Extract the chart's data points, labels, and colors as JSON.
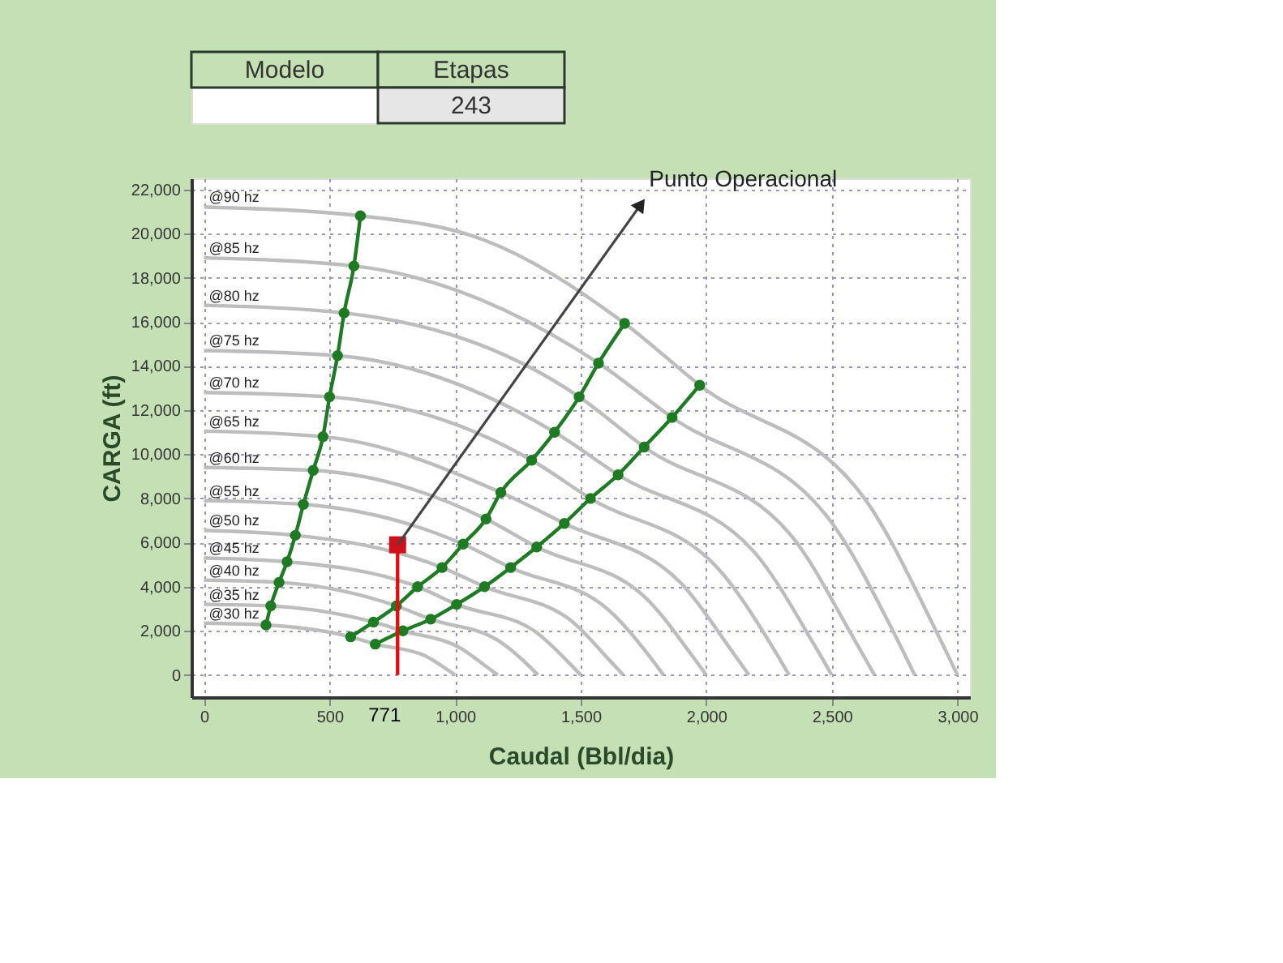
{
  "chart_data": {
    "type": "line",
    "xlabel": "Caudal (Bbl/dia)",
    "ylabel": "CARGA (ft)",
    "xlim": [
      -50,
      3050
    ],
    "ylim": [
      -1000,
      22500
    ],
    "xticks": [
      0,
      500,
      {
        "value": 1000,
        "label": "1,000"
      },
      {
        "value": 1500,
        "label": "1,500"
      },
      {
        "value": 2000,
        "label": "2,000"
      },
      {
        "value": 2500,
        "label": "2,500"
      },
      {
        "value": 3000,
        "label": "3,000"
      }
    ],
    "yticks": [
      0,
      {
        "value": 2000,
        "label": "2,000"
      },
      {
        "value": 4000,
        "label": "4,000"
      },
      {
        "value": 6000,
        "label": "6,000"
      },
      {
        "value": 8000,
        "label": "8,000"
      },
      {
        "value": 10000,
        "label": "10,000"
      },
      {
        "value": 12000,
        "label": "12,000"
      },
      {
        "value": 14000,
        "label": "14,000"
      },
      {
        "value": 16000,
        "label": "16,000"
      },
      {
        "value": 18000,
        "label": "18,000"
      },
      {
        "value": 20000,
        "label": "20,000"
      },
      {
        "value": 22000,
        "label": "22,000"
      }
    ],
    "grid": true,
    "line_style": "solid",
    "marker": "none",
    "annotations": [
      "Modelo",
      "Etapas",
      "243",
      {
        "text": "Punto Operacional",
        "x": 771,
        "y": 5900
      },
      {
        "text": "771",
        "x": 771,
        "y": 0
      }
    ],
    "series": [
      {
        "name": "@90 hz",
        "color": "#bdbdbd",
        "x": [
          0,
          623,
          1117,
          1675,
          1974,
          2630,
          2915,
          3000
        ],
        "values": [
          21200,
          20800,
          19700,
          15930,
          13130,
          8000,
          2000,
          0
        ]
      },
      {
        "name": "@85 hz",
        "color": "#bdbdbd",
        "x": [
          0,
          597,
          1571,
          1864,
          2484,
          2753,
          2830
        ],
        "values": [
          18900,
          18530,
          14130,
          11670,
          7140,
          1780,
          0
        ]
      },
      {
        "name": "@80 hz",
        "color": "#bdbdbd",
        "x": [
          0,
          558,
          1494,
          1753,
          2338,
          2591,
          2670
        ],
        "values": [
          16750,
          16400,
          12600,
          10330,
          6320,
          1580,
          0
        ]
      },
      {
        "name": "@75 hz",
        "color": "#bdbdbd",
        "x": [
          0,
          532,
          1396,
          1649,
          2192,
          2429,
          2500
        ],
        "values": [
          14700,
          14470,
          11000,
          9070,
          5560,
          1390,
          0
        ]
      },
      {
        "name": "@70 hz",
        "color": "#bdbdbd",
        "x": [
          0,
          500,
          1305,
          1539,
          2046,
          2267,
          2330
        ],
        "values": [
          12800,
          12600,
          9730,
          8000,
          4840,
          1210,
          0
        ]
      },
      {
        "name": "@65 hz",
        "color": "#bdbdbd",
        "x": [
          0,
          474,
          1182,
          1435,
          1899,
          2105,
          2170
        ],
        "values": [
          11050,
          10800,
          8270,
          6870,
          4170,
          1040,
          0
        ]
      },
      {
        "name": "@60 hz",
        "color": "#bdbdbd",
        "x": [
          0,
          435,
          1123,
          1325,
          1753,
          1943,
          2000
        ],
        "values": [
          9400,
          9270,
          7070,
          5800,
          3560,
          890,
          0
        ]
      },
      {
        "name": "@55 hz",
        "color": "#bdbdbd",
        "x": [
          0,
          396,
          1032,
          1221,
          1607,
          1781,
          1830
        ],
        "values": [
          7900,
          7730,
          5930,
          4870,
          2990,
          750,
          0
        ]
      },
      {
        "name": "@50 hz",
        "color": "#bdbdbd",
        "x": [
          0,
          364,
          948,
          1117,
          1461,
          1619,
          1670
        ],
        "values": [
          6550,
          6330,
          4870,
          4000,
          2470,
          620,
          0
        ]
      },
      {
        "name": "@45 hz",
        "color": "#bdbdbd",
        "x": [
          0,
          331,
          851,
          1006,
          1315,
          1458,
          1500
        ],
        "values": [
          5300,
          5130,
          4000,
          3200,
          2000,
          500,
          0
        ]
      },
      {
        "name": "@40 hz",
        "color": "#bdbdbd",
        "x": [
          0,
          299,
          766,
          903,
          1169,
          1295,
          1330
        ],
        "values": [
          4300,
          4200,
          3130,
          2530,
          1580,
          400,
          0
        ]
      },
      {
        "name": "@35 hz",
        "color": "#bdbdbd",
        "x": [
          0,
          266,
          675,
          792,
          1023,
          1134,
          1170
        ],
        "values": [
          3200,
          3130,
          2400,
          2000,
          1210,
          300,
          0
        ]
      },
      {
        "name": "@30 hz",
        "color": "#bdbdbd",
        "x": [
          0,
          247,
          584,
          682,
          877,
          972,
          1000
        ],
        "values": [
          2350,
          2270,
          1730,
          1400,
          890,
          220,
          0
        ]
      },
      {
        "color": "#1f7a24",
        "marker": "circle",
        "x": [
          623,
          597,
          558,
          532,
          500,
          474,
          435,
          396,
          364,
          331,
          299,
          266,
          247
        ],
        "values": [
          20800,
          18530,
          16400,
          14470,
          12600,
          10800,
          9270,
          7730,
          6330,
          5130,
          4200,
          3130,
          2270
        ]
      },
      {
        "color": "#1f7a24",
        "marker": "circle",
        "x": [
          1675,
          1571,
          1494,
          1396,
          1305,
          1182,
          1123,
          1032,
          948,
          851,
          766,
          675,
          584
        ],
        "values": [
          15930,
          14130,
          12600,
          11000,
          9730,
          8270,
          7070,
          5930,
          4870,
          4000,
          3130,
          2400,
          1730
        ]
      },
      {
        "color": "#1f7a24",
        "marker": "circle",
        "x": [
          1974,
          1864,
          1753,
          1649,
          1539,
          1435,
          1325,
          1221,
          1117,
          1006,
          903,
          792,
          682
        ],
        "values": [
          13130,
          11670,
          10330,
          9070,
          8000,
          6870,
          5800,
          4870,
          4000,
          3200,
          2530,
          2000,
          1400
        ]
      },
      {
        "color": "#e01010",
        "x": [
          771,
          771
        ],
        "values": [
          0,
          5900
        ]
      },
      {
        "type": "scatter",
        "color": "#d0101a",
        "marker": "square",
        "x": [
          771
        ],
        "values": [
          5900
        ]
      }
    ]
  }
}
